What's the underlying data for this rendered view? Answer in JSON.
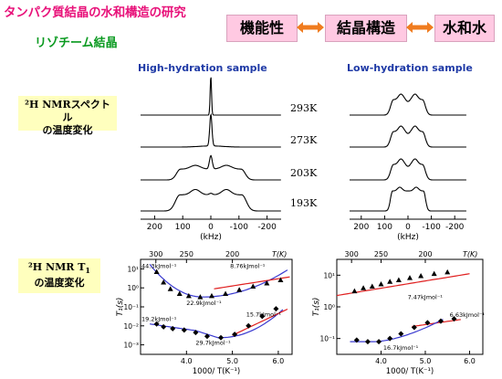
{
  "header": {
    "title": "タンパク質結晶の水和構造の研究",
    "subtitle": "リゾチーム結晶",
    "properties": [
      "機能性",
      "結晶構造",
      "水和水"
    ],
    "arrow_color": "#f07c1f"
  },
  "columns": {
    "high": "High-hydration sample",
    "low": "Low-hydration sample"
  },
  "row_labels": {
    "spectra_line1": "²H NMRスペクトル",
    "spectra_line2": "の温度変化",
    "t1_line1": "²H NMR T",
    "t1_sub": "1",
    "t1_line2": "の温度変化"
  },
  "temperatures": [
    "293K",
    "273K",
    "203K",
    "193K"
  ],
  "colors": {
    "pink_title": "#e8127a",
    "green_subtitle": "#0a9a20",
    "blue_header": "#1f3aa6",
    "fit_blue": "#3a3ad0",
    "fit_red": "#e02020"
  },
  "chart_data": [
    {
      "type": "line",
      "name": "high-hydration-spectra",
      "xlabel": "(kHz)",
      "xlim": [
        250,
        -250
      ],
      "x_ticks": [
        "200",
        "100",
        "0",
        "-100",
        "-200"
      ],
      "x_tick_values": [
        200,
        100,
        0,
        -100,
        -200
      ],
      "series": [
        {
          "temperature": "293K",
          "shape": "narrow"
        },
        {
          "temperature": "273K",
          "shape": "narrow-small"
        },
        {
          "temperature": "203K",
          "shape": "powder-wide-peak"
        },
        {
          "temperature": "193K",
          "shape": "powder-wide"
        }
      ]
    },
    {
      "type": "line",
      "name": "low-hydration-spectra",
      "xlabel": "(kHz)",
      "xlim": [
        250,
        -250
      ],
      "x_ticks": [
        "200",
        "100",
        "0",
        "-100",
        "-200"
      ],
      "x_tick_values": [
        200,
        100,
        0,
        -100,
        -200
      ],
      "series": [
        {
          "temperature": "293K",
          "shape": "powder-narrow"
        },
        {
          "temperature": "273K",
          "shape": "powder-narrow"
        },
        {
          "temperature": "203K",
          "shape": "powder-narrow"
        },
        {
          "temperature": "193K",
          "shape": "powder-box"
        }
      ]
    },
    {
      "type": "scatter",
      "name": "high-hydration-T1",
      "xlabel": "1000/ T(K⁻¹)",
      "ylabel": "T₁(s)",
      "top_axis_label": "T(K)",
      "xlim": [
        3.0,
        6.3
      ],
      "ylog_range": [
        -3.5,
        1.5
      ],
      "x_ticks": [
        "4.0",
        "5.0",
        "6.0"
      ],
      "x_tick_values": [
        4.0,
        5.0,
        6.0
      ],
      "y_ticks": [
        "10¹",
        "10⁰",
        "10⁻¹",
        "10⁻²",
        "10⁻³"
      ],
      "y_tick_values": [
        1,
        0,
        -1,
        -2,
        -3
      ],
      "top_ticks": [
        "300",
        "250",
        "200"
      ],
      "top_tick_values": [
        300,
        250,
        200
      ],
      "annotations": [
        "44.3kJmol⁻¹",
        "8.76kJmol⁻¹",
        "22.9kJmol⁻¹",
        "15.7kJmol⁻¹",
        "19.2kJmol⁻¹",
        "29.7kJmol⁻¹"
      ],
      "series": [
        {
          "marker": "triangle",
          "x": [
            3.35,
            3.5,
            3.65,
            3.85,
            4.05,
            4.3,
            4.55,
            4.85,
            5.15,
            5.45,
            5.75,
            6.05
          ],
          "logy": [
            0.85,
            0.3,
            -0.05,
            -0.3,
            -0.42,
            -0.48,
            -0.42,
            -0.3,
            -0.1,
            0.08,
            0.25,
            0.42
          ]
        },
        {
          "marker": "diamond",
          "x": [
            3.35,
            3.5,
            3.7,
            3.95,
            4.2,
            4.45,
            4.75,
            5.05,
            5.35,
            5.65,
            5.95
          ],
          "logy": [
            -1.9,
            -2.05,
            -2.15,
            -2.22,
            -2.35,
            -2.55,
            -2.62,
            -2.45,
            -2.0,
            -1.5,
            -1.1
          ]
        }
      ]
    },
    {
      "type": "scatter",
      "name": "low-hydration-T1",
      "xlabel": "1000/ T(K⁻¹)",
      "ylabel": "T₁(s)",
      "top_axis_label": "T(K)",
      "xlim": [
        3.0,
        6.3
      ],
      "ylog_range": [
        -1.5,
        1.5
      ],
      "x_ticks": [
        "4.0",
        "5.0",
        "6.0"
      ],
      "x_tick_values": [
        4.0,
        5.0,
        6.0
      ],
      "y_ticks": [
        "10¹",
        "10⁰",
        "10⁻¹"
      ],
      "y_tick_values": [
        1,
        0,
        -1
      ],
      "top_ticks": [
        "300",
        "250",
        "200"
      ],
      "top_tick_values": [
        300,
        250,
        200
      ],
      "annotations": [
        "7.47kJmol⁻¹",
        "6.63kJmol⁻¹",
        "16.7kJmol⁻¹"
      ],
      "series": [
        {
          "marker": "triangle",
          "x": [
            3.4,
            3.6,
            3.8,
            4.0,
            4.2,
            4.4,
            4.65,
            4.9,
            5.2,
            5.5
          ],
          "logy": [
            0.5,
            0.6,
            0.65,
            0.72,
            0.8,
            0.85,
            0.92,
            0.98,
            1.05,
            1.1
          ]
        },
        {
          "marker": "diamond",
          "x": [
            3.45,
            3.7,
            3.95,
            4.2,
            4.45,
            4.75,
            5.05,
            5.35,
            5.65
          ],
          "logy": [
            -1.05,
            -1.1,
            -1.1,
            -1.0,
            -0.85,
            -0.65,
            -0.5,
            -0.45,
            -0.38
          ]
        }
      ]
    }
  ]
}
